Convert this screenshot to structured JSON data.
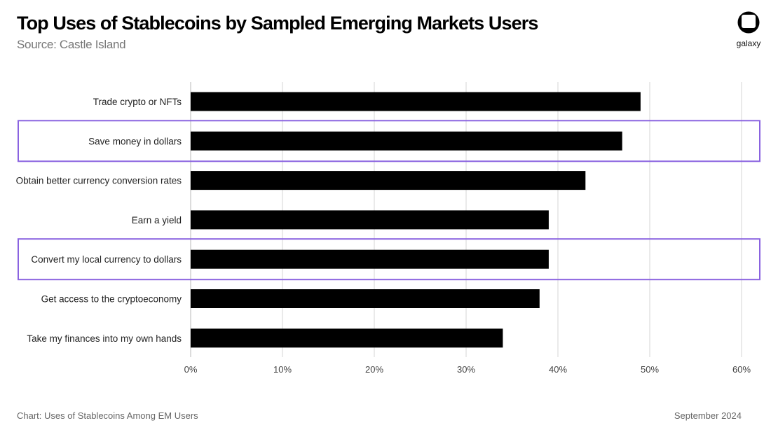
{
  "header": {
    "title": "Top Uses of Stablecoins by Sampled Emerging Markets Users",
    "subtitle": "Source: Castle Island"
  },
  "logo": {
    "text": "galaxy",
    "icon": "galaxy-logo-icon"
  },
  "footer": {
    "left": "Chart: Uses of Stablecoins Among EM Users",
    "right": "September 2024"
  },
  "colors": {
    "bar": "#000000",
    "highlight": "#8a63e0",
    "grid": "#e3e3e3"
  },
  "chart_data": {
    "type": "bar",
    "orientation": "horizontal",
    "categories": [
      "Trade crypto or NFTs",
      "Save money in dollars",
      "Obtain better currency conversion rates",
      "Earn a yield",
      "Convert my local currency to dollars",
      "Get access to the cryptoeconomy",
      "Take my finances into my own hands"
    ],
    "values": [
      49,
      47,
      43,
      39,
      39,
      38,
      34
    ],
    "highlighted": [
      "Save money in dollars",
      "Convert my local currency to dollars"
    ],
    "xlim": [
      0,
      60
    ],
    "xticks": [
      "0%",
      "10%",
      "20%",
      "30%",
      "40%",
      "50%",
      "60%"
    ],
    "grid": "vertical",
    "title": "Top Uses of Stablecoins by Sampled Emerging Markets Users"
  }
}
